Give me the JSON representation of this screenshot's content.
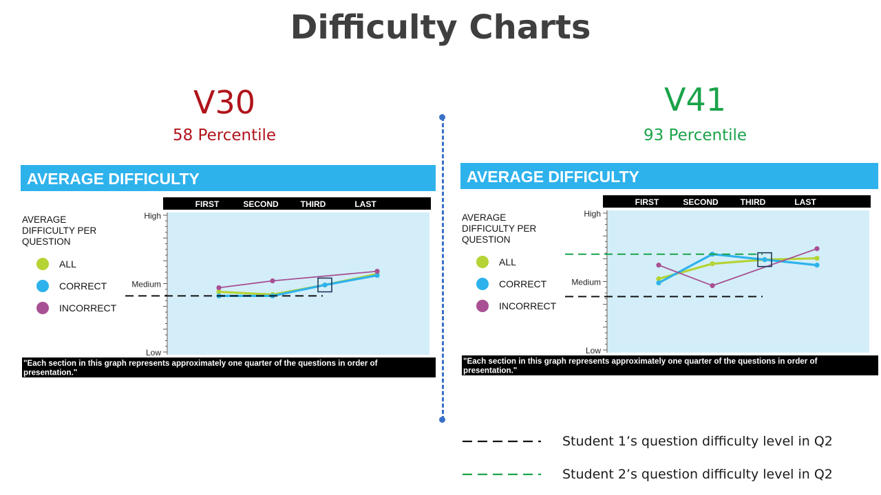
{
  "page": {
    "title": "Difficulty Charts"
  },
  "panels": [
    {
      "version": "V30",
      "percentile": "58 Percentile",
      "version_color": "#b0141c"
    },
    {
      "version": "V41",
      "percentile": "93 Percentile",
      "version_color": "#1aa34a"
    }
  ],
  "chart_common": {
    "banner": "AVERAGE DIFFICULTY",
    "side_label": "AVERAGE DIFFICULTY PER QUESTION",
    "side_label_lines": [
      "AVERAGE",
      "DIFFICULTY PER",
      "QUESTION"
    ],
    "legend": [
      {
        "label": "ALL",
        "color": "#b5d334"
      },
      {
        "label": "CORRECT",
        "color": "#2eb2ec"
      },
      {
        "label": "INCORRECT",
        "color": "#a85093"
      }
    ],
    "footnote_lines": [
      "\"Each section in this graph represents approximately one quarter of the questions in order of",
      "presentation.\""
    ],
    "banner_color": "#2eb2ec",
    "plot_bg": "#d3eef9"
  },
  "chart_data": [
    {
      "type": "line",
      "title": "AVERAGE DIFFICULTY",
      "categories": [
        "FIRST",
        "SECOND",
        "THIRD",
        "LAST"
      ],
      "y_ticks": [
        "High",
        "Medium",
        "Low"
      ],
      "ylim": [
        0,
        100
      ],
      "series": [
        {
          "name": "ALL",
          "color": "#b5d334",
          "values": [
            44,
            42,
            49,
            57
          ]
        },
        {
          "name": "CORRECT",
          "color": "#2eb2ec",
          "values": [
            41,
            41,
            49,
            56
          ]
        },
        {
          "name": "INCORRECT",
          "color": "#a85093",
          "values": [
            47,
            52,
            null,
            59
          ]
        }
      ],
      "reference_lines": [
        {
          "color": "#111111",
          "value": 41,
          "to_category": "THIRD"
        }
      ],
      "highlight_category": "THIRD",
      "highlight_value": 49
    },
    {
      "type": "line",
      "title": "AVERAGE DIFFICULTY",
      "categories": [
        "FIRST",
        "SECOND",
        "THIRD",
        "LAST"
      ],
      "y_ticks": [
        "High",
        "Medium",
        "Low"
      ],
      "ylim": [
        0,
        100
      ],
      "series": [
        {
          "name": "ALL",
          "color": "#b5d334",
          "values": [
            52,
            63,
            66,
            67
          ]
        },
        {
          "name": "CORRECT",
          "color": "#2eb2ec",
          "values": [
            49,
            70,
            66,
            62
          ]
        },
        {
          "name": "INCORRECT",
          "color": "#a85093",
          "values": [
            62,
            47,
            null,
            74
          ]
        }
      ],
      "reference_lines": [
        {
          "color": "#111111",
          "value": 39,
          "to_category": "THIRD"
        },
        {
          "color": "#1aa34a",
          "value": 70,
          "to_category": "THIRD"
        }
      ],
      "highlight_category": "THIRD",
      "highlight_value": 66
    }
  ],
  "bottom_legend": [
    {
      "label": "Student 1’s question difficulty level in Q2",
      "color": "#111111"
    },
    {
      "label": "Student 2’s question difficulty level in Q2",
      "color": "#1aa34a"
    }
  ]
}
